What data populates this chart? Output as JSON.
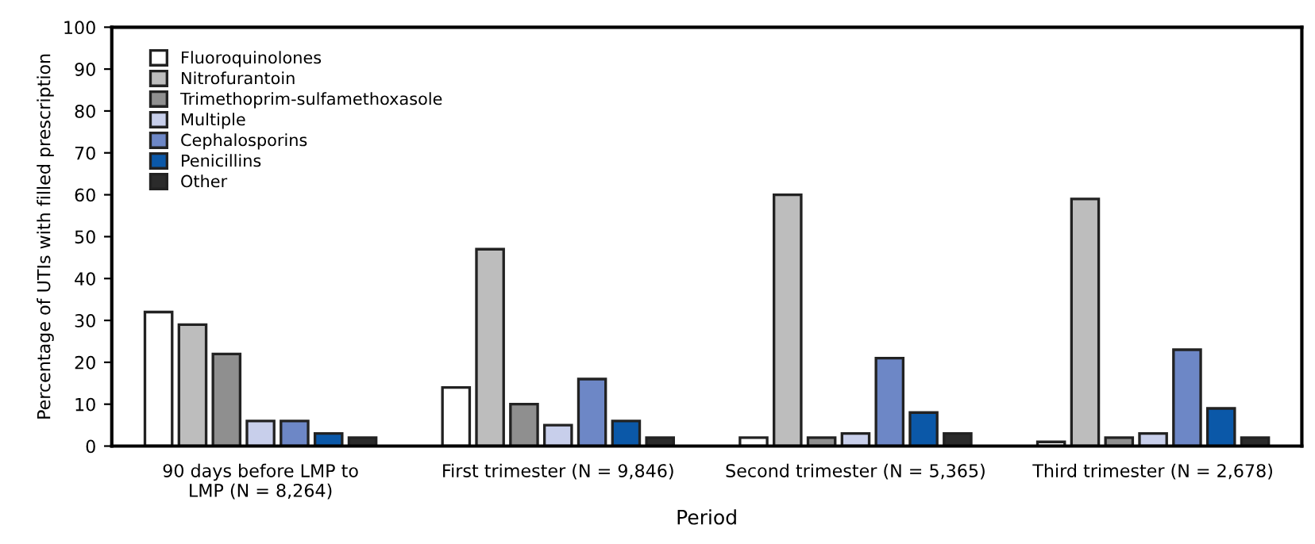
{
  "chart_data": {
    "type": "bar",
    "xlabel": "Period",
    "ylabel": "Percentage of UTIs with filled prescription",
    "categories": [
      "90 days before LMP to\nLMP (N = 8,264)",
      "First trimester (N = 9,846)",
      "Second trimester (N = 5,365)",
      "Third trimester (N = 2,678)"
    ],
    "series": [
      {
        "name": "Fluoroquinolones",
        "color": "#ffffff",
        "values": [
          32,
          14,
          2,
          1
        ]
      },
      {
        "name": "Nitrofurantoin",
        "color": "#bdbdbd",
        "values": [
          29,
          47,
          60,
          59
        ]
      },
      {
        "name": "Trimethoprim-sulfamethoxasole",
        "color": "#8f8f8f",
        "values": [
          22,
          10,
          2,
          2
        ]
      },
      {
        "name": "Multiple",
        "color": "#c8cfeb",
        "values": [
          6,
          5,
          3,
          3
        ]
      },
      {
        "name": "Cephalosporins",
        "color": "#6d87c6",
        "values": [
          6,
          16,
          21,
          23
        ]
      },
      {
        "name": "Penicillins",
        "color": "#0b58a8",
        "values": [
          3,
          6,
          8,
          9
        ]
      },
      {
        "name": "Other",
        "color": "#2b2b2b",
        "values": [
          2,
          2,
          3,
          2
        ]
      }
    ],
    "ylim": [
      0,
      100
    ],
    "yticks": [
      0,
      10,
      20,
      30,
      40,
      50,
      60,
      70,
      80,
      90,
      100
    ],
    "grid": false,
    "legend": "top left"
  }
}
